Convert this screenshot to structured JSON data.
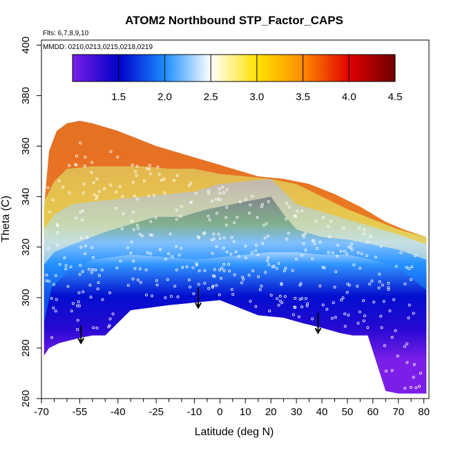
{
  "chart_data": {
    "type": "heatmap",
    "title": "ATOM2 Northbound STP_Factor_CAPS",
    "flights_note": "Flts: 6,7,8,9,10",
    "dates_note": "MMDD: 0210,0213,0215,0218,0219",
    "xlabel": "Latitude (deg N)",
    "ylabel": "Theta (C)",
    "xlim": [
      -70,
      82
    ],
    "ylim": [
      260,
      402
    ],
    "x_ticks_major": [
      -70,
      -55,
      -40,
      -25,
      -10,
      0,
      10,
      20,
      30,
      40,
      50,
      60,
      70,
      80
    ],
    "x_tick_labels": [
      "-70",
      "-55",
      "-40",
      "-25",
      "-10",
      "0",
      "10",
      "20",
      "30",
      "40",
      "50",
      "60",
      "70",
      "80"
    ],
    "x_ticks_minor": [
      -65,
      -60,
      -50,
      -45,
      -35,
      -30,
      -20,
      -15,
      -5,
      5,
      15,
      25,
      35,
      45,
      55,
      65,
      75
    ],
    "y_ticks": [
      260,
      280,
      300,
      320,
      340,
      360,
      380,
      400
    ],
    "y_tick_labels": [
      "260",
      "280",
      "300",
      "320",
      "340",
      "360",
      "380",
      "400"
    ],
    "colorbar": {
      "min": 1.0,
      "max": 4.5,
      "ticks": [
        1.5,
        2.0,
        2.5,
        3.0,
        3.5,
        4.0,
        4.5
      ],
      "tick_labels": [
        "1.5",
        "2.0",
        "2.5",
        "3.0",
        "3.5",
        "4.0",
        "4.5"
      ],
      "colors": [
        "#7b1fe8",
        "#0000c8",
        "#1a8cff",
        "#ffffff",
        "#ffe300",
        "#ff8c00",
        "#e00000",
        "#6e0000"
      ]
    },
    "bottom_boundary": [
      [
        -69,
        277
      ],
      [
        -67,
        280
      ],
      [
        -63,
        282
      ],
      [
        -55,
        284
      ],
      [
        -50,
        285
      ],
      [
        -45,
        285
      ],
      [
        -35,
        295
      ],
      [
        -20,
        297
      ],
      [
        -10,
        298
      ],
      [
        0,
        299
      ],
      [
        10,
        295
      ],
      [
        15,
        293
      ],
      [
        25,
        292
      ],
      [
        32,
        290
      ],
      [
        40,
        288
      ],
      [
        47,
        286
      ],
      [
        52,
        285
      ],
      [
        58,
        285
      ],
      [
        65,
        263
      ],
      [
        70,
        262
      ],
      [
        81,
        262
      ]
    ],
    "top_boundary": [
      [
        -69,
        335
      ],
      [
        -67,
        358
      ],
      [
        -64,
        366
      ],
      [
        -60,
        369
      ],
      [
        -55,
        370
      ],
      [
        -50,
        369
      ],
      [
        -40,
        366
      ],
      [
        -25,
        360
      ],
      [
        -15,
        357
      ],
      [
        -5,
        354
      ],
      [
        5,
        351
      ],
      [
        15,
        348
      ],
      [
        25,
        347
      ],
      [
        35,
        345
      ],
      [
        45,
        341
      ],
      [
        55,
        336
      ],
      [
        65,
        330
      ],
      [
        72,
        327
      ],
      [
        81,
        324
      ]
    ],
    "contour_levels": [
      {
        "value": 2.0,
        "points": [
          [
            -69,
            290
          ],
          [
            -66,
            304
          ],
          [
            -60,
            310
          ],
          [
            -50,
            315
          ],
          [
            -35,
            317
          ],
          [
            -20,
            316
          ],
          [
            -10,
            315
          ],
          [
            0,
            316
          ],
          [
            10,
            317
          ],
          [
            20,
            318
          ],
          [
            30,
            318
          ],
          [
            40,
            317
          ],
          [
            50,
            317
          ],
          [
            60,
            315
          ],
          [
            70,
            312
          ],
          [
            81,
            303
          ]
        ]
      },
      {
        "value": 2.6,
        "points": [
          [
            -69,
            313
          ],
          [
            -65,
            318
          ],
          [
            -58,
            321
          ],
          [
            -45,
            326
          ],
          [
            -35,
            329
          ],
          [
            -25,
            332
          ],
          [
            -15,
            332
          ],
          [
            -5,
            335
          ],
          [
            5,
            337
          ],
          [
            15,
            339
          ],
          [
            20,
            340
          ],
          [
            25,
            333
          ],
          [
            30,
            327
          ],
          [
            40,
            324
          ],
          [
            50,
            323
          ],
          [
            60,
            321
          ],
          [
            70,
            319
          ],
          [
            81,
            315
          ]
        ]
      },
      {
        "value": 3.2,
        "points": [
          [
            -69,
            327
          ],
          [
            -65,
            333
          ],
          [
            -58,
            337
          ],
          [
            -50,
            338
          ],
          [
            -40,
            339
          ],
          [
            -30,
            340
          ],
          [
            -20,
            341
          ],
          [
            -10,
            342
          ],
          [
            0,
            345
          ],
          [
            10,
            346
          ],
          [
            20,
            347
          ],
          [
            25,
            342
          ],
          [
            30,
            337
          ],
          [
            40,
            334
          ],
          [
            50,
            331
          ],
          [
            60,
            328
          ],
          [
            70,
            325
          ],
          [
            81,
            321
          ]
        ]
      },
      {
        "value": 3.8,
        "points": [
          [
            -69,
            338
          ],
          [
            -65,
            346
          ],
          [
            -60,
            351
          ],
          [
            -50,
            352
          ],
          [
            -40,
            352
          ],
          [
            -30,
            352
          ],
          [
            -20,
            351
          ],
          [
            -10,
            351
          ],
          [
            0,
            349
          ],
          [
            10,
            348
          ],
          [
            20,
            347
          ],
          [
            30,
            345
          ],
          [
            40,
            340
          ],
          [
            50,
            335
          ],
          [
            60,
            331
          ],
          [
            70,
            327
          ],
          [
            81,
            324
          ]
        ]
      }
    ],
    "arrows": [
      {
        "x": -54.5,
        "y_from": 289,
        "y_to": 282
      },
      {
        "x": -8.5,
        "y_from": 304,
        "y_to": 296
      },
      {
        "x": 38.5,
        "y_from": 294,
        "y_to": 286
      }
    ]
  }
}
